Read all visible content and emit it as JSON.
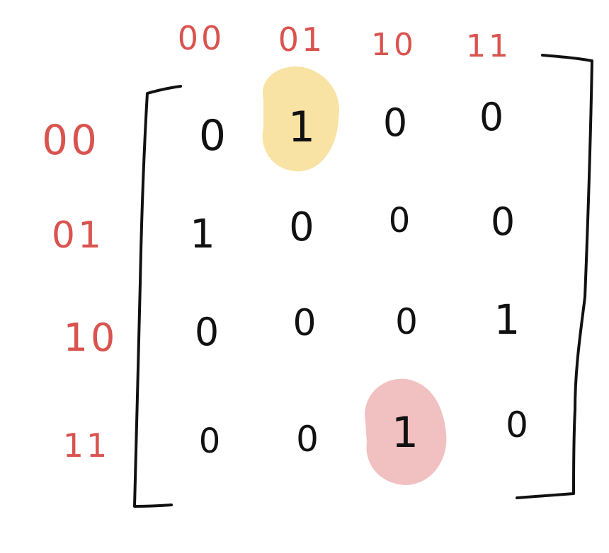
{
  "matrix": {
    "col_labels": [
      "00",
      "01",
      "10",
      "11"
    ],
    "row_labels": [
      "00",
      "01",
      "10",
      "11"
    ],
    "rows": [
      [
        "0",
        "1",
        "0",
        "0"
      ],
      [
        "1",
        "0",
        "0",
        "0"
      ],
      [
        "0",
        "0",
        "0",
        "1"
      ],
      [
        "0",
        "0",
        "1",
        "0"
      ]
    ],
    "highlights": [
      {
        "row": 0,
        "col": 1,
        "color": "#f8e3a4"
      },
      {
        "row": 3,
        "col": 2,
        "color": "#f1c0c1"
      }
    ],
    "label_color": "#d9534f",
    "ink_color": "#111111"
  }
}
